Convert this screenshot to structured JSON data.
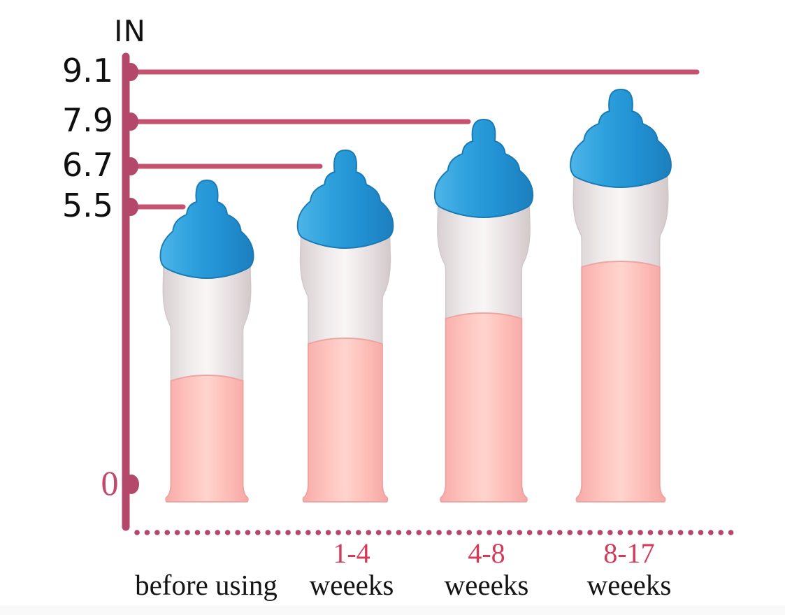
{
  "chart_data": {
    "type": "bar",
    "title": "",
    "ylabel": "IN",
    "unit": "inches",
    "categories": [
      {
        "range": "",
        "word": "before using"
      },
      {
        "range": "1-4",
        "word": "weeeks"
      },
      {
        "range": "4-8",
        "word": "weeeks"
      },
      {
        "range": "8-17",
        "word": "weeeks"
      }
    ],
    "values": [
      5.5,
      6.7,
      7.9,
      9.1
    ],
    "yticks": [
      {
        "label": "9.1",
        "value": 9.1
      },
      {
        "label": "7.9",
        "value": 7.9
      },
      {
        "label": "6.7",
        "value": 6.7
      },
      {
        "label": "5.5",
        "value": 5.5
      },
      {
        "label": "0",
        "value": 0
      }
    ],
    "ylim": [
      0,
      9.1
    ],
    "legend_position": "none",
    "grid": "horizontal reference line from axis to each bar top",
    "baseline_style": "dotted"
  },
  "colors": {
    "axis": "#b4486a",
    "reference_line": "#c5536f",
    "tick_text": "#0f0f0f",
    "zero_text": "#c04a6b",
    "range_text": "#d23a58",
    "category_text": "#141414",
    "cap_blue": "#2598d8",
    "body_white": "#efe9ea",
    "tube_pink": "#fcbcb8",
    "background": "#ffffff"
  }
}
